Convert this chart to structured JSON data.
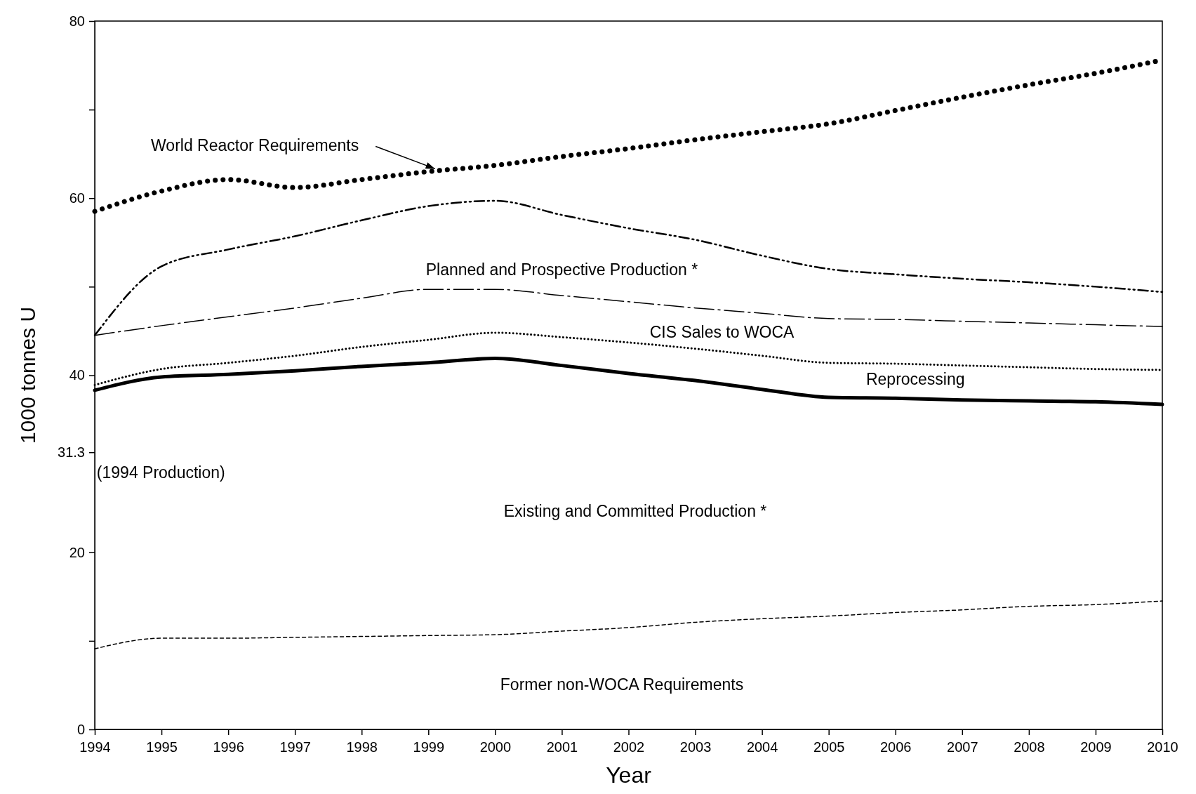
{
  "chart_data": {
    "type": "line",
    "xlabel": "Year",
    "ylabel": "1000 tonnes U",
    "x": [
      1994,
      1995,
      1996,
      1997,
      1998,
      1999,
      2000,
      2001,
      2002,
      2003,
      2004,
      2005,
      2006,
      2007,
      2008,
      2009,
      2010
    ],
    "xlim": [
      1994,
      2010
    ],
    "xticks": [
      1994,
      1995,
      1996,
      1997,
      1998,
      1999,
      2000,
      2001,
      2002,
      2003,
      2004,
      2005,
      2006,
      2007,
      2008,
      2009,
      2010
    ],
    "ylim": [
      0,
      80
    ],
    "yticks": [
      0,
      {
        "value": 10,
        "label": null
      },
      20,
      {
        "value": 31.3,
        "label": "31.3"
      },
      40,
      {
        "value": 50,
        "label": null
      },
      60,
      {
        "value": 70,
        "label": null
      },
      80
    ],
    "grid": false,
    "series": [
      {
        "color": "#000000",
        "line_style": "dotted",
        "values": [
          58.5,
          60.8,
          62.1,
          61.2,
          62.1,
          63.0,
          63.7,
          64.7,
          65.6,
          66.6,
          67.5,
          68.4,
          69.9,
          71.4,
          72.8,
          74.1,
          75.6
        ]
      },
      {
        "color": "#000000",
        "line_style": "dashed",
        "values": [
          44.5,
          52.3,
          54.2,
          55.7,
          57.5,
          59.1,
          59.7,
          58.1,
          56.6,
          55.3,
          53.5,
          52.0,
          51.4,
          50.9,
          50.5,
          50.0,
          49.4
        ]
      },
      {
        "color": "#000000",
        "line_style": "dashed",
        "values": [
          44.5,
          45.6,
          46.6,
          47.6,
          48.7,
          49.7,
          49.7,
          49.0,
          48.3,
          47.6,
          47.0,
          46.4,
          46.3,
          46.1,
          45.9,
          45.7,
          45.5
        ]
      },
      {
        "color": "#000000",
        "line_style": "dotted",
        "values": [
          38.9,
          40.7,
          41.4,
          42.2,
          43.2,
          44.0,
          44.8,
          44.3,
          43.7,
          43.0,
          42.2,
          41.4,
          41.3,
          41.1,
          40.9,
          40.7,
          40.6
        ]
      },
      {
        "color": "#000000",
        "line_style": "solid",
        "values": [
          38.3,
          39.8,
          40.1,
          40.5,
          41.0,
          41.4,
          41.9,
          41.1,
          40.2,
          39.4,
          38.4,
          37.5,
          37.4,
          37.2,
          37.1,
          37.0,
          36.7
        ]
      },
      {
        "color": "#000000",
        "line_style": "dashed",
        "values": [
          9.1,
          10.3,
          10.3,
          10.4,
          10.5,
          10.6,
          10.7,
          11.1,
          11.5,
          12.1,
          12.5,
          12.8,
          13.2,
          13.5,
          13.9,
          14.1,
          14.5
        ]
      }
    ],
    "annotations": [
      {
        "text": "World Reactor Requirements",
        "x": 1999.1,
        "y": 63.0
      },
      "Planned and Prospective Production *",
      "CIS Sales to WOCA",
      "Reprocessing",
      "Existing and Committed Production *",
      "Former non-WOCA Requirements",
      "(1994 Production)"
    ]
  }
}
